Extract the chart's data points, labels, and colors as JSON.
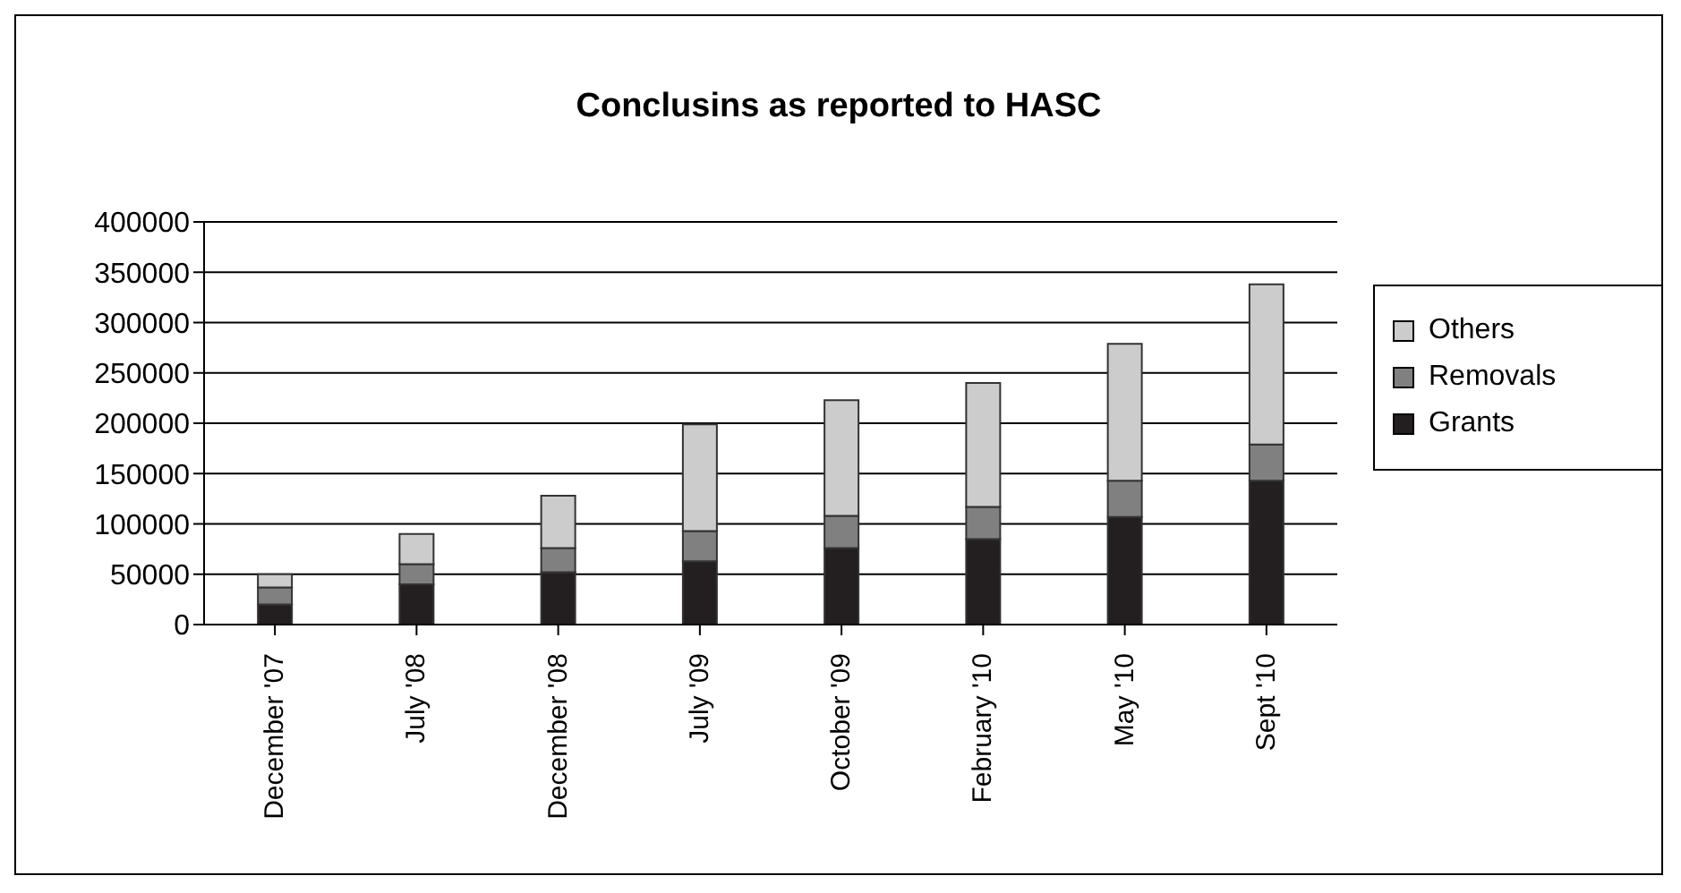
{
  "chart_data": {
    "type": "bar",
    "title": "Conclusins as reported to HASC",
    "stacked": true,
    "categories": [
      "December '07",
      "July '08",
      "December '08",
      "July '09",
      "October '09",
      "February '10",
      "May '10",
      "Sept '10"
    ],
    "series": [
      {
        "name": "Grants",
        "color": "#231f20",
        "values": [
          20000,
          40000,
          52000,
          63000,
          76000,
          85000,
          107000,
          143000
        ]
      },
      {
        "name": "Removals",
        "color": "#808080",
        "values": [
          17000,
          20000,
          24000,
          30000,
          32000,
          32000,
          36000,
          36000
        ]
      },
      {
        "name": "Others",
        "color": "#cccccc",
        "values": [
          13000,
          30000,
          52000,
          106000,
          115000,
          123000,
          136000,
          159000
        ]
      }
    ],
    "ylim": [
      0,
      400000
    ],
    "yticks": [
      0,
      50000,
      100000,
      150000,
      200000,
      250000,
      300000,
      350000,
      400000
    ],
    "grid": "y",
    "legend": "right"
  }
}
